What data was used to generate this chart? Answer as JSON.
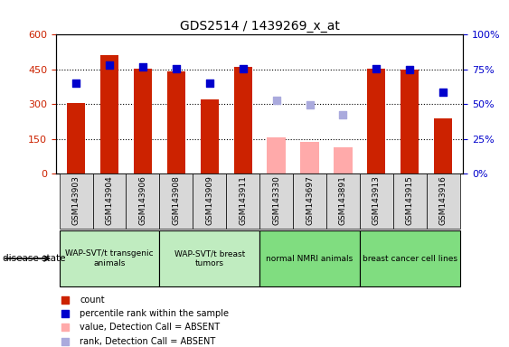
{
  "title": "GDS2514 / 1439269_x_at",
  "samples": [
    "GSM143903",
    "GSM143904",
    "GSM143906",
    "GSM143908",
    "GSM143909",
    "GSM143911",
    "GSM143330",
    "GSM143697",
    "GSM143891",
    "GSM143913",
    "GSM143915",
    "GSM143916"
  ],
  "count_present": [
    305,
    510,
    455,
    440,
    320,
    460,
    null,
    null,
    null,
    455,
    450,
    240
  ],
  "count_absent": [
    null,
    null,
    null,
    null,
    null,
    null,
    155,
    135,
    115,
    null,
    null,
    null
  ],
  "rank_present": [
    390,
    470,
    460,
    455,
    390,
    455,
    null,
    null,
    null,
    455,
    450,
    350
  ],
  "rank_absent": [
    null,
    null,
    null,
    null,
    null,
    null,
    315,
    295,
    255,
    null,
    null,
    null
  ],
  "ylim_left": [
    0,
    600
  ],
  "ylim_right": [
    0,
    100
  ],
  "yticks_left": [
    0,
    150,
    300,
    450,
    600
  ],
  "yticks_right": [
    0,
    25,
    50,
    75,
    100
  ],
  "ytick_labels_right": [
    "0%",
    "25%",
    "50%",
    "75%",
    "100%"
  ],
  "groups": [
    {
      "label": "WAP-SVT/t transgenic\nanimals",
      "start": 0,
      "end": 2,
      "color": "#c0ecc0"
    },
    {
      "label": "WAP-SVT/t breast\ntumors",
      "start": 3,
      "end": 5,
      "color": "#c0ecc0"
    },
    {
      "label": "normal NMRI animals",
      "start": 6,
      "end": 8,
      "color": "#80dd80"
    },
    {
      "label": "breast cancer cell lines",
      "start": 9,
      "end": 11,
      "color": "#80dd80"
    }
  ],
  "bar_color_present": "#cc2200",
  "bar_color_absent": "#ffaaaa",
  "dot_color_present": "#0000cc",
  "dot_color_absent": "#aaaadd",
  "dot_size": 40,
  "background_color": "#ffffff",
  "tick_label_color_left": "#cc2200",
  "tick_label_color_right": "#0000cc",
  "legend_items": [
    {
      "color": "#cc2200",
      "label": "count"
    },
    {
      "color": "#0000cc",
      "label": "percentile rank within the sample"
    },
    {
      "color": "#ffaaaa",
      "label": "value, Detection Call = ABSENT"
    },
    {
      "color": "#aaaadd",
      "label": "rank, Detection Call = ABSENT"
    }
  ]
}
